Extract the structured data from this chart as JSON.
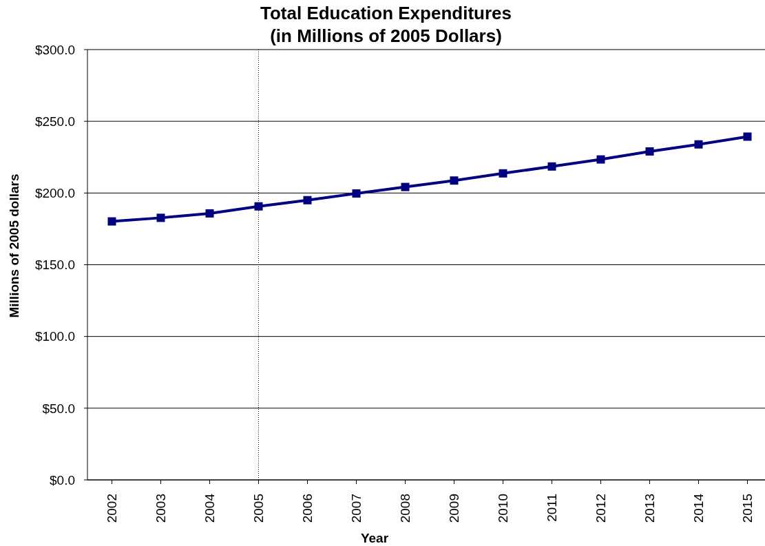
{
  "chart_data": {
    "type": "line",
    "title": "Total Education Expenditures\n(in Millions of 2005 Dollars)",
    "xlabel": "Year",
    "ylabel": "Millions of 2005 dollars",
    "x": [
      2002,
      2003,
      2004,
      2005,
      2006,
      2007,
      2008,
      2009,
      2010,
      2011,
      2012,
      2013,
      2014,
      2015
    ],
    "values": [
      180.2,
      182.7,
      185.8,
      190.7,
      195.0,
      199.7,
      204.2,
      208.7,
      213.7,
      218.5,
      223.4,
      229.0,
      233.9,
      239.3
    ],
    "color": "#000080",
    "marker": "square",
    "line_style": "solid",
    "xlim": [
      2001.5,
      2015.5
    ],
    "xticks": [
      2002,
      2003,
      2004,
      2005,
      2006,
      2007,
      2008,
      2009,
      2010,
      2011,
      2012,
      2013,
      2014,
      2015
    ],
    "ylim": [
      0,
      300
    ],
    "yticks": [
      {
        "value": 0,
        "label": "$0.0"
      },
      {
        "value": 50,
        "label": "$50.0"
      },
      {
        "value": 100,
        "label": "$100.0"
      },
      {
        "value": 150,
        "label": "$150.0"
      },
      {
        "value": 200,
        "label": "$200.0"
      },
      {
        "value": 250,
        "label": "$250.0"
      },
      {
        "value": 300,
        "label": "$300.0"
      }
    ],
    "grid": "y",
    "ref_lines": [
      {
        "axis": "x",
        "value": 2005,
        "color": "#000000",
        "line_style": "dotted"
      }
    ]
  }
}
